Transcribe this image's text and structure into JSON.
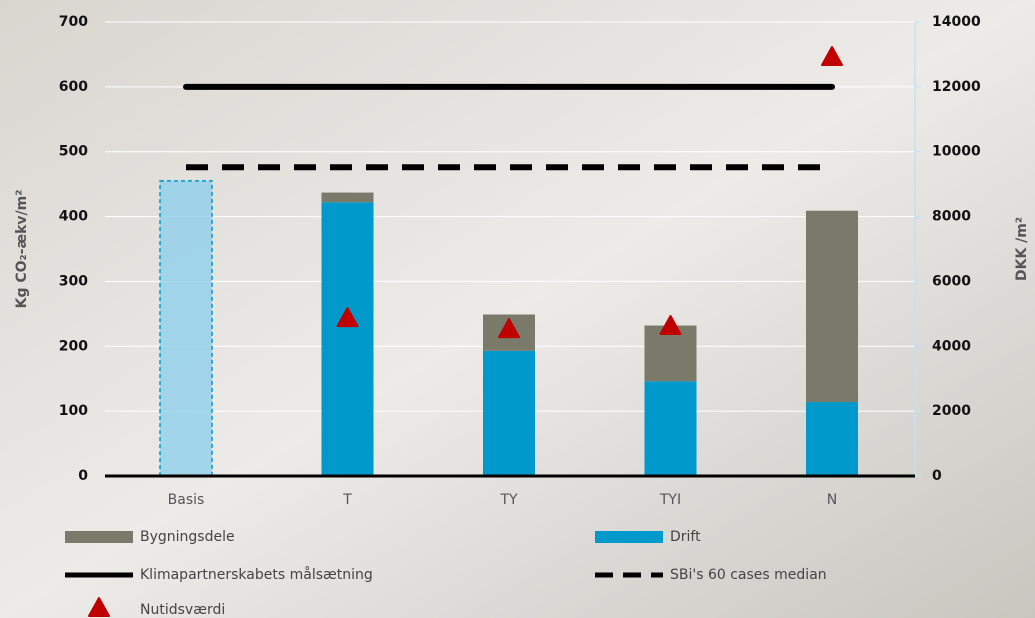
{
  "chart_data": {
    "type": "combo",
    "y_label": "Kg CO₂-ækv/m²",
    "y2_label": "DKK /m²",
    "categories": [
      "Basis",
      "T",
      "TY",
      "TYI",
      "N"
    ],
    "ylim": [
      0,
      700
    ],
    "yticks": [
      0,
      100,
      200,
      300,
      400,
      500,
      600,
      700
    ],
    "y2lim": [
      0,
      14000
    ],
    "y2ticks": [
      0,
      2000,
      4000,
      6000,
      8000,
      10000,
      12000,
      14000
    ],
    "grid": true,
    "series": [
      {
        "name": "Bygningsdele",
        "type": "bar",
        "color": "#7a7a6a",
        "values": [
          null,
          15,
          56,
          86,
          295
        ]
      },
      {
        "name": "Drift",
        "type": "bar",
        "color": "#0099cc",
        "point_colors": [
          "#8fd0ea",
          "#0099cc",
          "#0099cc",
          "#0099cc",
          "#0099cc"
        ],
        "values": [
          455,
          422,
          193,
          146,
          114
        ]
      },
      {
        "name": "Klimapartnerskabets målsætning",
        "type": "line",
        "color": "#000000",
        "dash": false,
        "values": [
          600,
          600,
          600,
          600,
          600
        ]
      },
      {
        "name": "SBi's 60 cases median",
        "type": "line",
        "color": "#000000",
        "dash": true,
        "values": [
          476,
          476,
          476,
          476,
          476
        ]
      },
      {
        "name": "Nutidsværdi",
        "type": "scatter",
        "axis": "y2",
        "color": "#c00000",
        "values": [
          null,
          4870,
          4530,
          4625,
          12920
        ]
      }
    ]
  }
}
